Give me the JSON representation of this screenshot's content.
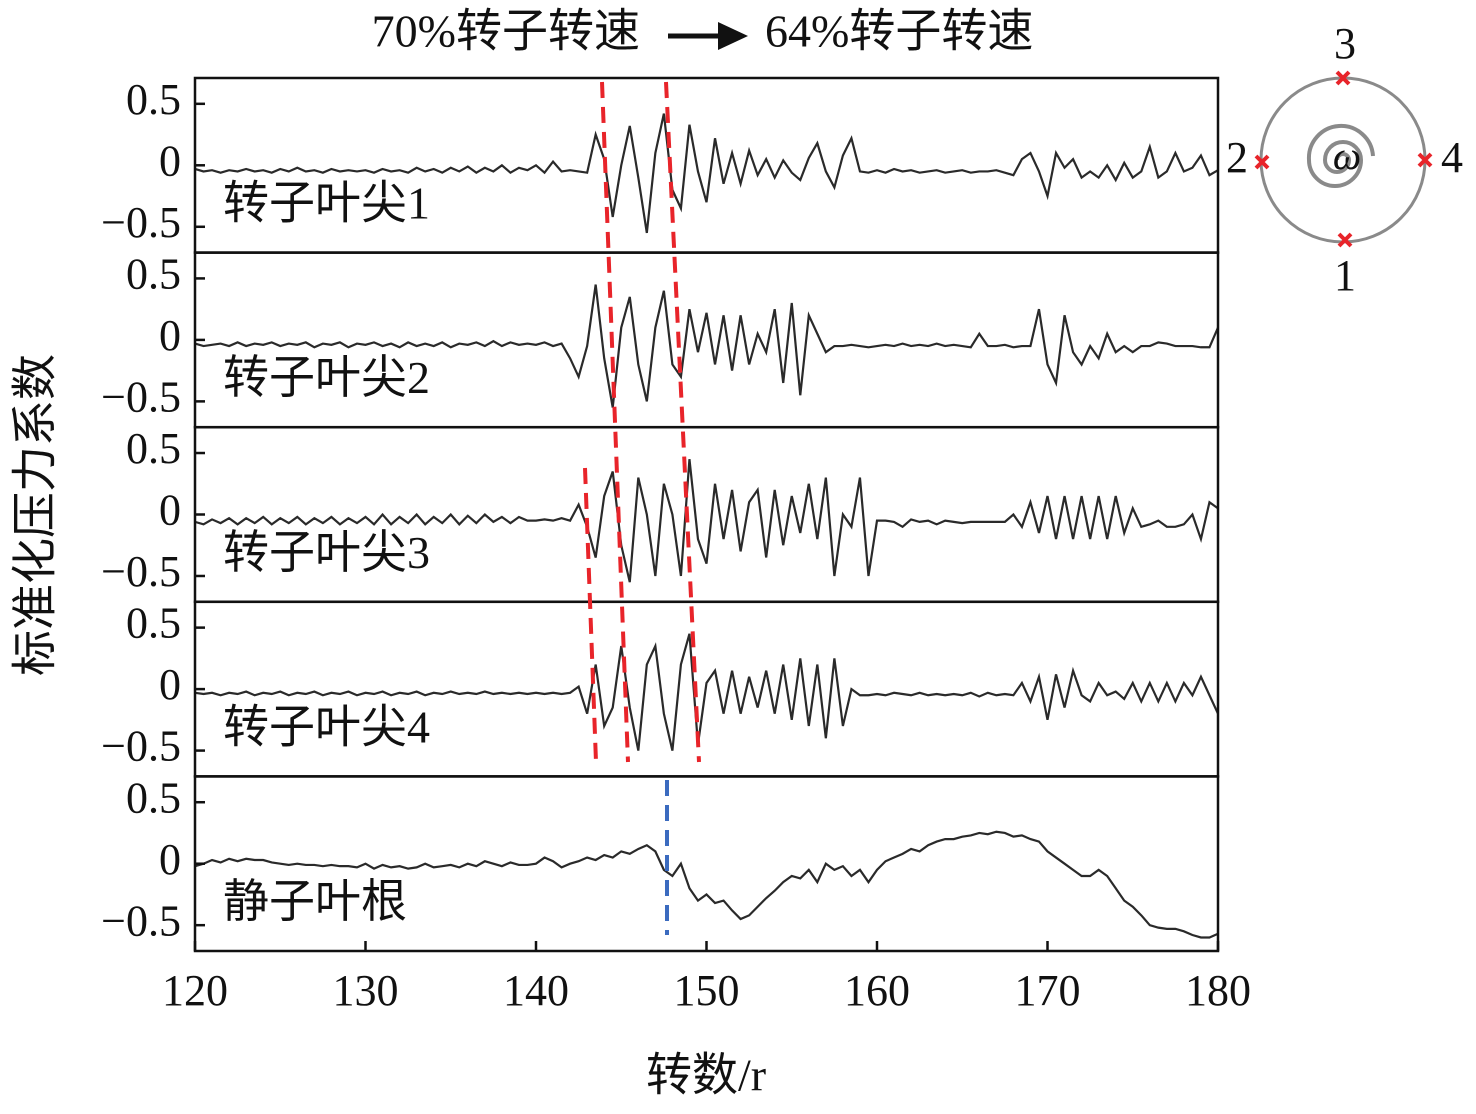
{
  "chart_data": {
    "type": "line",
    "stacked_panels": true,
    "title": [
      "70%转子转速",
      "64%转子转速"
    ],
    "xlabel": "转数/r",
    "ylabel": "标准化压力系数",
    "xlim": [
      120,
      180
    ],
    "xticks": [
      120,
      130,
      140,
      150,
      160,
      170,
      180
    ],
    "ylim": [
      -0.71,
      0.71
    ],
    "yticks": [
      {
        "value": -0.5,
        "label": "−0.5"
      },
      0,
      0.5
    ],
    "x": [
      120,
      120.5,
      121,
      121.5,
      122,
      122.5,
      123,
      123.5,
      124,
      124.5,
      125,
      125.5,
      126,
      126.5,
      127,
      127.5,
      128,
      128.5,
      129,
      129.5,
      130,
      130.5,
      131,
      131.5,
      132,
      132.5,
      133,
      133.5,
      134,
      134.5,
      135,
      135.5,
      136,
      136.5,
      137,
      137.5,
      138,
      138.5,
      139,
      139.5,
      140,
      140.5,
      141,
      141.5,
      142,
      142.5,
      143,
      143.5,
      144,
      144.5,
      145,
      145.5,
      146,
      146.5,
      147,
      147.5,
      148,
      148.5,
      149,
      149.5,
      150,
      150.5,
      151,
      151.5,
      152,
      152.5,
      153,
      153.5,
      154,
      154.5,
      155,
      155.5,
      156,
      156.5,
      157,
      157.5,
      158,
      158.5,
      159,
      159.5,
      160,
      160.5,
      161,
      161.5,
      162,
      162.5,
      163,
      163.5,
      164,
      164.5,
      165,
      165.5,
      166,
      166.5,
      167,
      167.5,
      168,
      168.5,
      169,
      169.5,
      170,
      170.5,
      171,
      171.5,
      172,
      172.5,
      173,
      173.5,
      174,
      174.5,
      175,
      175.5,
      176,
      176.5,
      177,
      177.5,
      178,
      178.5,
      179,
      179.5,
      180
    ],
    "series": [
      {
        "name": "转子叶尖1",
        "color": "#2a2a2a",
        "values": [
          -0.03,
          -0.05,
          -0.04,
          -0.06,
          -0.04,
          -0.05,
          -0.03,
          -0.05,
          -0.04,
          -0.06,
          -0.03,
          -0.05,
          -0.02,
          -0.05,
          -0.04,
          -0.06,
          -0.03,
          -0.05,
          -0.04,
          -0.05,
          -0.04,
          -0.06,
          -0.03,
          -0.05,
          -0.04,
          -0.06,
          -0.02,
          -0.05,
          -0.03,
          -0.06,
          -0.02,
          -0.05,
          -0.01,
          -0.06,
          -0.02,
          -0.05,
          0.0,
          -0.06,
          -0.02,
          -0.04,
          0.0,
          -0.06,
          0.03,
          -0.05,
          -0.04,
          -0.05,
          -0.06,
          0.25,
          0.05,
          -0.42,
          0.0,
          0.32,
          -0.1,
          -0.55,
          0.1,
          0.42,
          -0.2,
          -0.35,
          0.33,
          -0.05,
          -0.3,
          0.22,
          -0.15,
          0.1,
          -0.15,
          0.12,
          -0.08,
          0.05,
          -0.1,
          0.04,
          -0.06,
          -0.12,
          0.06,
          0.18,
          -0.05,
          -0.18,
          0.08,
          0.22,
          -0.05,
          -0.06,
          -0.04,
          -0.06,
          -0.03,
          -0.05,
          -0.04,
          -0.06,
          -0.05,
          -0.04,
          -0.06,
          -0.05,
          -0.04,
          -0.06,
          -0.05,
          -0.05,
          -0.04,
          -0.06,
          -0.08,
          0.05,
          0.1,
          -0.05,
          -0.25,
          0.1,
          -0.02,
          0.05,
          -0.1,
          -0.05,
          -0.1,
          0.0,
          -0.12,
          0.02,
          -0.1,
          -0.05,
          0.15,
          -0.1,
          -0.05,
          0.1,
          -0.05,
          -0.02,
          0.08,
          -0.08,
          -0.04
        ]
      },
      {
        "name": "转子叶尖2",
        "color": "#2a2a2a",
        "values": [
          -0.03,
          -0.05,
          -0.04,
          -0.03,
          -0.05,
          -0.02,
          -0.05,
          -0.03,
          -0.04,
          -0.02,
          -0.05,
          -0.03,
          -0.04,
          -0.02,
          -0.06,
          -0.03,
          -0.04,
          -0.02,
          -0.06,
          -0.03,
          -0.04,
          -0.02,
          -0.05,
          -0.03,
          -0.06,
          -0.02,
          -0.05,
          -0.03,
          -0.05,
          -0.02,
          -0.06,
          -0.03,
          -0.04,
          -0.02,
          -0.05,
          -0.01,
          -0.05,
          -0.02,
          -0.04,
          -0.03,
          -0.04,
          -0.02,
          -0.05,
          -0.03,
          -0.15,
          -0.3,
          -0.05,
          0.45,
          -0.15,
          -0.55,
          0.1,
          0.35,
          -0.2,
          -0.5,
          0.1,
          0.4,
          -0.2,
          -0.3,
          0.25,
          -0.1,
          0.22,
          -0.2,
          0.2,
          -0.25,
          0.2,
          -0.2,
          0.05,
          -0.1,
          0.25,
          -0.35,
          0.3,
          -0.45,
          0.2,
          0.05,
          -0.1,
          -0.05,
          -0.05,
          -0.04,
          -0.05,
          -0.06,
          -0.05,
          -0.04,
          -0.05,
          -0.03,
          -0.05,
          -0.04,
          -0.05,
          -0.03,
          -0.05,
          -0.04,
          -0.05,
          -0.06,
          0.05,
          -0.05,
          -0.05,
          -0.04,
          -0.06,
          -0.05,
          -0.05,
          0.25,
          -0.2,
          -0.35,
          0.2,
          -0.1,
          -0.2,
          -0.05,
          -0.15,
          0.05,
          -0.1,
          -0.05,
          -0.1,
          -0.05,
          -0.05,
          -0.02,
          -0.03,
          -0.05,
          -0.05,
          -0.05,
          -0.06,
          -0.06,
          0.1
        ]
      },
      {
        "name": "转子叶尖3",
        "color": "#2a2a2a",
        "values": [
          -0.06,
          -0.08,
          -0.04,
          -0.07,
          -0.03,
          -0.08,
          -0.03,
          -0.07,
          -0.02,
          -0.08,
          -0.03,
          -0.07,
          -0.02,
          -0.08,
          -0.03,
          -0.07,
          -0.02,
          -0.08,
          -0.03,
          -0.07,
          -0.02,
          -0.08,
          0.0,
          -0.08,
          -0.02,
          -0.07,
          0.0,
          -0.08,
          -0.02,
          -0.07,
          0.0,
          -0.08,
          -0.01,
          -0.07,
          0.0,
          -0.06,
          -0.02,
          -0.07,
          -0.02,
          -0.05,
          -0.05,
          -0.04,
          -0.05,
          -0.03,
          -0.05,
          0.08,
          -0.1,
          -0.35,
          0.15,
          0.35,
          -0.25,
          -0.55,
          0.3,
          0.0,
          -0.5,
          0.25,
          0.0,
          -0.5,
          0.45,
          -0.2,
          -0.4,
          0.25,
          -0.2,
          0.2,
          -0.3,
          0.1,
          0.2,
          -0.35,
          0.2,
          -0.25,
          0.15,
          -0.15,
          0.25,
          -0.2,
          0.3,
          -0.5,
          0.0,
          -0.1,
          0.3,
          -0.5,
          -0.05,
          -0.05,
          -0.06,
          -0.1,
          -0.04,
          -0.06,
          -0.05,
          -0.08,
          -0.05,
          -0.06,
          -0.07,
          -0.06,
          -0.06,
          -0.06,
          -0.06,
          -0.06,
          0.0,
          -0.1,
          0.1,
          -0.15,
          0.15,
          -0.2,
          0.15,
          -0.2,
          0.15,
          -0.2,
          0.15,
          -0.2,
          0.15,
          -0.15,
          0.05,
          -0.1,
          -0.08,
          -0.05,
          -0.1,
          -0.1,
          -0.08,
          0.0,
          -0.2,
          0.1,
          0.05
        ]
      },
      {
        "name": "转子叶尖4",
        "color": "#2a2a2a",
        "values": [
          -0.03,
          -0.04,
          -0.03,
          -0.05,
          -0.03,
          -0.04,
          -0.02,
          -0.05,
          -0.03,
          -0.04,
          -0.02,
          -0.05,
          -0.03,
          -0.04,
          -0.02,
          -0.05,
          -0.03,
          -0.04,
          -0.02,
          -0.05,
          -0.03,
          -0.04,
          -0.02,
          -0.05,
          -0.03,
          -0.04,
          -0.02,
          -0.05,
          -0.03,
          -0.04,
          -0.02,
          -0.04,
          -0.03,
          -0.04,
          -0.02,
          -0.04,
          -0.03,
          -0.04,
          -0.03,
          -0.04,
          -0.03,
          -0.04,
          -0.03,
          -0.04,
          -0.03,
          0.02,
          -0.2,
          0.2,
          -0.3,
          -0.15,
          0.35,
          -0.15,
          -0.5,
          0.2,
          0.35,
          -0.2,
          -0.5,
          0.2,
          0.45,
          -0.45,
          0.05,
          0.15,
          -0.2,
          0.15,
          -0.2,
          0.1,
          -0.15,
          0.15,
          -0.2,
          0.2,
          -0.25,
          0.25,
          -0.3,
          0.2,
          -0.4,
          0.25,
          -0.3,
          0.0,
          -0.05,
          -0.05,
          -0.04,
          -0.05,
          -0.03,
          -0.04,
          -0.05,
          -0.03,
          -0.05,
          -0.04,
          -0.05,
          -0.04,
          -0.05,
          -0.03,
          -0.06,
          -0.03,
          -0.05,
          -0.04,
          -0.05,
          0.05,
          -0.1,
          0.1,
          -0.25,
          0.12,
          -0.15,
          0.15,
          -0.05,
          -0.1,
          0.05,
          -0.05,
          -0.02,
          -0.08,
          0.05,
          -0.1,
          0.05,
          -0.1,
          0.05,
          -0.1,
          0.05,
          -0.05,
          0.1,
          -0.05,
          -0.2
        ]
      },
      {
        "name": "静子叶根",
        "color": "#2a2a2a",
        "values": [
          -0.02,
          0.0,
          0.03,
          0.01,
          0.04,
          0.02,
          0.04,
          0.03,
          0.03,
          0.01,
          0.0,
          -0.01,
          0.0,
          -0.01,
          -0.01,
          -0.02,
          -0.01,
          -0.02,
          -0.02,
          -0.03,
          0.0,
          -0.04,
          -0.01,
          -0.03,
          -0.02,
          -0.04,
          -0.03,
          0.0,
          -0.03,
          -0.02,
          -0.01,
          -0.03,
          0.0,
          -0.02,
          0.02,
          0.0,
          -0.02,
          0.01,
          -0.01,
          -0.01,
          0.0,
          0.05,
          0.02,
          -0.03,
          0.0,
          0.02,
          0.05,
          0.03,
          0.07,
          0.05,
          0.1,
          0.08,
          0.12,
          0.15,
          0.1,
          -0.05,
          -0.1,
          0.0,
          -0.2,
          -0.3,
          -0.25,
          -0.32,
          -0.3,
          -0.38,
          -0.45,
          -0.42,
          -0.35,
          -0.28,
          -0.22,
          -0.15,
          -0.1,
          -0.12,
          -0.05,
          -0.15,
          0.0,
          -0.05,
          -0.02,
          -0.1,
          -0.05,
          -0.15,
          -0.05,
          0.02,
          0.05,
          0.08,
          0.12,
          0.1,
          0.15,
          0.18,
          0.2,
          0.2,
          0.22,
          0.23,
          0.25,
          0.24,
          0.26,
          0.25,
          0.22,
          0.23,
          0.2,
          0.18,
          0.1,
          0.05,
          0.0,
          -0.05,
          -0.1,
          -0.1,
          -0.05,
          -0.1,
          -0.2,
          -0.3,
          -0.35,
          -0.42,
          -0.5,
          -0.52,
          -0.53,
          -0.53,
          -0.55,
          -0.58,
          -0.6,
          -0.6,
          -0.57
        ]
      }
    ]
  },
  "inset": {
    "labels": [
      "1",
      "2",
      "3",
      "4"
    ],
    "symbol": "ω"
  }
}
